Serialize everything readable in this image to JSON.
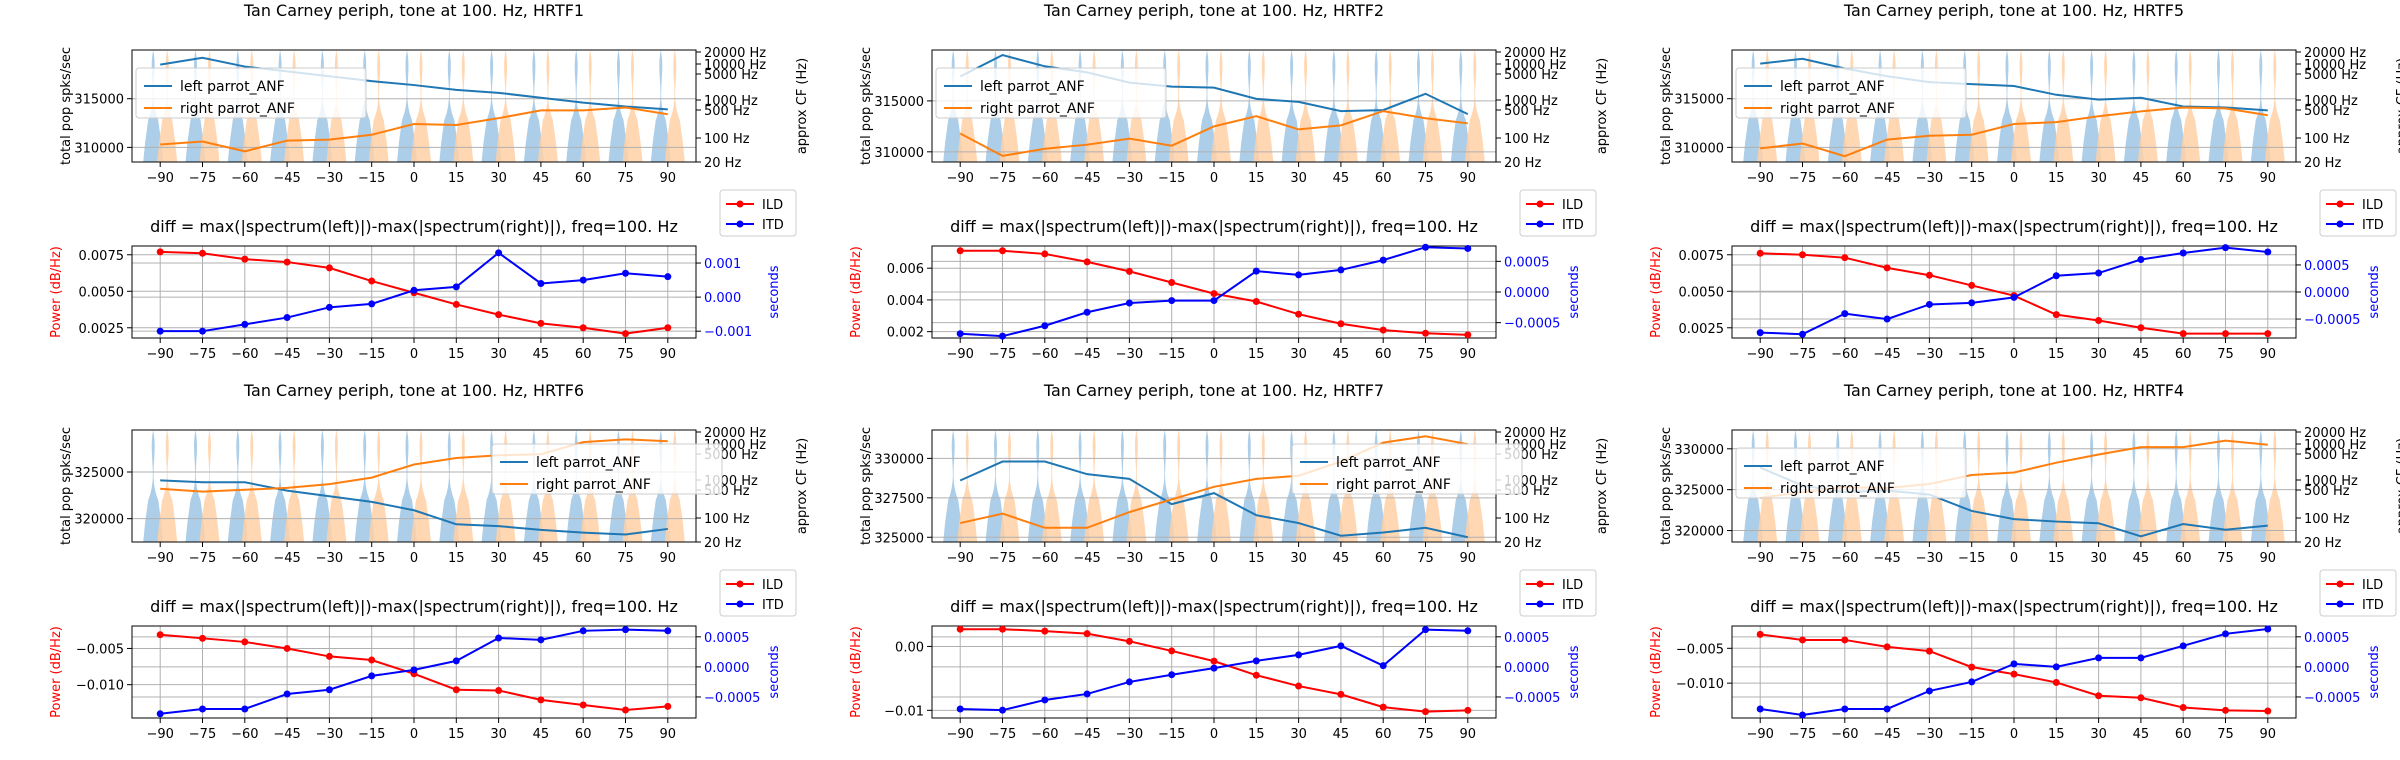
{
  "chart_data": [
    {
      "id": "hrtf1",
      "type": "line",
      "top": {
        "title": "Tan Carney periph, tone at 100. Hz, HRTF1",
        "ylabel": "total pop spks/sec",
        "y2label": "approx CF (Hz)",
        "x": [
          -90,
          -75,
          -60,
          -45,
          -30,
          -15,
          0,
          15,
          30,
          45,
          60,
          75,
          90
        ],
        "ylim": [
          308500,
          320000
        ],
        "yticks": [
          310000,
          315000
        ],
        "ytick_labels": [
          "310000",
          "315000"
        ],
        "y2ticks": [
          "20 Hz",
          "100 Hz",
          "500 Hz",
          "1000 Hz",
          "5000 Hz",
          "10000 Hz",
          "20000 Hz"
        ],
        "legend": "upper left",
        "series": [
          {
            "name": "left  parrot_ANF",
            "color": "#1f77b4",
            "values": [
              318500,
              319200,
              318300,
              317800,
              317300,
              316800,
              316400,
              315900,
              315600,
              315100,
              314600,
              314200,
              313900
            ]
          },
          {
            "name": "right parrot_ANF",
            "color": "#ff7f0e",
            "values": [
              310300,
              310600,
              309600,
              310700,
              310800,
              311300,
              312400,
              312300,
              313000,
              313800,
              313800,
              314100,
              313400
            ]
          }
        ]
      },
      "bottom": {
        "title": "diff = max(|spectrum(left)|)-max(|spectrum(right)|), freq=100. Hz",
        "ylabel": "Power (dB/Hz)",
        "y2label": "seconds",
        "ylim": [
          0.0018,
          0.0081
        ],
        "yticks": [
          0.0025,
          0.005,
          0.0075
        ],
        "ytick_labels": [
          "0.0025",
          "0.0050",
          "0.0075"
        ],
        "y2lim": [
          -0.0012,
          0.0015
        ],
        "y2ticks": [
          -0.001,
          0,
          0.001
        ],
        "y2tick_labels": [
          "−0.001",
          "0.000",
          "0.001"
        ],
        "ild": [
          0.0077,
          0.0076,
          0.0072,
          0.007,
          0.0066,
          0.0057,
          0.0049,
          0.0041,
          0.0034,
          0.0028,
          0.0025,
          0.0021,
          0.0025
        ],
        "itd": [
          -0.001,
          -0.001,
          -0.0008,
          -0.0006,
          -0.0003,
          -0.0002,
          0.0002,
          0.0003,
          0.0013,
          0.0004,
          0.0005,
          0.0007,
          0.0006
        ]
      }
    },
    {
      "id": "hrtf2",
      "type": "line",
      "top": {
        "title": "Tan Carney periph, tone at 100. Hz, HRTF2",
        "ylabel": "total pop spks/sec",
        "y2label": "approx CF (Hz)",
        "x": [
          -90,
          -75,
          -60,
          -45,
          -30,
          -15,
          0,
          15,
          30,
          45,
          60,
          75,
          90
        ],
        "ylim": [
          309000,
          320000
        ],
        "yticks": [
          310000,
          315000
        ],
        "ytick_labels": [
          "310000",
          "315000"
        ],
        "y2ticks": [
          "20 Hz",
          "100 Hz",
          "500 Hz",
          "1000 Hz",
          "5000 Hz",
          "10000 Hz",
          "20000 Hz"
        ],
        "legend": "upper left",
        "series": [
          {
            "name": "left  parrot_ANF",
            "color": "#1f77b4",
            "values": [
              317400,
              319500,
              318400,
              317800,
              316800,
              316400,
              316300,
              315200,
              314900,
              314000,
              314100,
              315700,
              313700
            ]
          },
          {
            "name": "right parrot_ANF",
            "color": "#ff7f0e",
            "values": [
              311800,
              309600,
              310300,
              310700,
              311300,
              310600,
              312500,
              313500,
              312200,
              312600,
              314000,
              313300,
              312800
            ]
          }
        ]
      },
      "bottom": {
        "title": "diff = max(|spectrum(left)|)-max(|spectrum(right)|), freq=100. Hz",
        "ylabel": "Power (dB/Hz)",
        "y2label": "seconds",
        "ylim": [
          0.0016,
          0.0074
        ],
        "yticks": [
          0.002,
          0.004,
          0.006
        ],
        "ytick_labels": [
          "0.002",
          "0.004",
          "0.006"
        ],
        "y2lim": [
          -0.00075,
          0.00075
        ],
        "y2ticks": [
          -0.0005,
          0,
          0.0005
        ],
        "y2tick_labels": [
          "−0.0005",
          "0.0000",
          "0.0005"
        ],
        "ild": [
          0.0071,
          0.0071,
          0.0069,
          0.0064,
          0.0058,
          0.0051,
          0.0044,
          0.0039,
          0.0031,
          0.0025,
          0.0021,
          0.0019,
          0.0018
        ],
        "itd": [
          -0.00068,
          -0.00072,
          -0.00055,
          -0.00033,
          -0.00018,
          -0.00014,
          -0.00014,
          0.00034,
          0.00028,
          0.00036,
          0.00052,
          0.00073,
          0.00071
        ]
      }
    },
    {
      "id": "hrtf5",
      "type": "line",
      "top": {
        "title": "Tan Carney periph, tone at 100. Hz, HRTF5",
        "ylabel": "total pop spks/sec",
        "y2label": "approx CF (Hz)",
        "x": [
          -90,
          -75,
          -60,
          -45,
          -30,
          -15,
          0,
          15,
          30,
          45,
          60,
          75,
          90
        ],
        "ylim": [
          308500,
          320000
        ],
        "yticks": [
          310000,
          315000
        ],
        "ytick_labels": [
          "310000",
          "315000"
        ],
        "y2ticks": [
          "20 Hz",
          "100 Hz",
          "500 Hz",
          "1000 Hz",
          "5000 Hz",
          "10000 Hz",
          "20000 Hz"
        ],
        "legend": "upper left",
        "series": [
          {
            "name": "left  parrot_ANF",
            "color": "#1f77b4",
            "values": [
              318600,
              319100,
              318100,
              317300,
              316700,
              316500,
              316300,
              315400,
              314900,
              315100,
              314200,
              314100,
              313800
            ]
          },
          {
            "name": "right parrot_ANF",
            "color": "#ff7f0e",
            "values": [
              309900,
              310400,
              309100,
              310800,
              311200,
              311300,
              312400,
              312600,
              313200,
              313700,
              314100,
              314000,
              313300
            ]
          }
        ]
      },
      "bottom": {
        "title": "diff = max(|spectrum(left)|)-max(|spectrum(right)|), freq=100. Hz",
        "ylabel": "Power (dB/Hz)",
        "y2label": "seconds",
        "ylim": [
          0.0018,
          0.0081
        ],
        "yticks": [
          0.0025,
          0.005,
          0.0075
        ],
        "ytick_labels": [
          "0.0025",
          "0.0050",
          "0.0075"
        ],
        "y2lim": [
          -0.00085,
          0.00085
        ],
        "y2ticks": [
          -0.0005,
          0,
          0.0005
        ],
        "y2tick_labels": [
          "−0.0005",
          "0.0000",
          "0.0005"
        ],
        "ild": [
          0.0076,
          0.0075,
          0.0073,
          0.0066,
          0.0061,
          0.0054,
          0.0047,
          0.0034,
          0.003,
          0.0025,
          0.0021,
          0.0021,
          0.0021
        ],
        "itd": [
          -0.00075,
          -0.00078,
          -0.0004,
          -0.0005,
          -0.00023,
          -0.0002,
          -0.0001,
          0.0003,
          0.00035,
          0.0006,
          0.00072,
          0.00082,
          0.00074
        ]
      }
    },
    {
      "id": "hrtf6",
      "type": "line",
      "top": {
        "title": "Tan Carney periph, tone at 100. Hz, HRTF6",
        "ylabel": "total pop spks/sec",
        "y2label": "approx CF (Hz)",
        "x": [
          -90,
          -75,
          -60,
          -45,
          -30,
          -15,
          0,
          15,
          30,
          45,
          60,
          75,
          90
        ],
        "ylim": [
          317500,
          329500
        ],
        "yticks": [
          320000,
          325000
        ],
        "ytick_labels": [
          "320000",
          "325000"
        ],
        "y2ticks": [
          "20 Hz",
          "100 Hz",
          "500 Hz",
          "1000 Hz",
          "5000 Hz",
          "10000 Hz",
          "20000 Hz"
        ],
        "legend": "center right",
        "series": [
          {
            "name": "left  parrot_ANF",
            "color": "#1f77b4",
            "values": [
              324100,
              323900,
              323900,
              323000,
              322400,
              321800,
              320900,
              319400,
              319200,
              318800,
              318500,
              318300,
              318900
            ]
          },
          {
            "name": "right parrot_ANF",
            "color": "#ff7f0e",
            "values": [
              323200,
              322900,
              323100,
              323300,
              323700,
              324400,
              325800,
              326500,
              326800,
              326900,
              328200,
              328500,
              328300
            ]
          }
        ]
      },
      "bottom": {
        "title": "diff = max(|spectrum(left)|)-max(|spectrum(right)|), freq=100. Hz",
        "ylabel": "Power (dB/Hz)",
        "y2label": "seconds",
        "ylim": [
          -0.0146,
          -0.0019
        ],
        "yticks": [
          -0.01,
          -0.005
        ],
        "ytick_labels": [
          "−0.010",
          "−0.005"
        ],
        "y2lim": [
          -0.00085,
          0.00068
        ],
        "y2ticks": [
          -0.0005,
          0,
          0.0005
        ],
        "y2tick_labels": [
          "−0.0005",
          "0.0000",
          "0.0005"
        ],
        "ild": [
          -0.0031,
          -0.0036,
          -0.0041,
          -0.005,
          -0.0061,
          -0.0066,
          -0.0085,
          -0.0107,
          -0.0108,
          -0.0121,
          -0.0128,
          -0.0135,
          -0.013
        ],
        "itd": [
          -0.00078,
          -0.0007,
          -0.0007,
          -0.00045,
          -0.00038,
          -0.00015,
          -5e-05,
          0.0001,
          0.00048,
          0.00045,
          0.0006,
          0.00062,
          0.0006
        ]
      }
    },
    {
      "id": "hrtf7",
      "type": "line",
      "top": {
        "title": "Tan Carney periph, tone at 100. Hz, HRTF7",
        "ylabel": "total pop spks/sec",
        "y2label": "approx CF (Hz)",
        "x": [
          -90,
          -75,
          -60,
          -45,
          -30,
          -15,
          0,
          15,
          30,
          45,
          60,
          75,
          90
        ],
        "ylim": [
          324700,
          331800
        ],
        "yticks": [
          325000,
          327500,
          330000
        ],
        "ytick_labels": [
          "325000",
          "327500",
          "330000"
        ],
        "y2ticks": [
          "20 Hz",
          "100 Hz",
          "500 Hz",
          "1000 Hz",
          "5000 Hz",
          "10000 Hz",
          "20000 Hz"
        ],
        "legend": "center right",
        "series": [
          {
            "name": "left  parrot_ANF",
            "color": "#1f77b4",
            "values": [
              328600,
              329800,
              329800,
              329000,
              328700,
              327100,
              327800,
              326400,
              325900,
              325100,
              325300,
              325600,
              325000
            ]
          },
          {
            "name": "right parrot_ANF",
            "color": "#ff7f0e",
            "values": [
              325900,
              326500,
              325600,
              325600,
              326600,
              327400,
              328200,
              328700,
              328900,
              329800,
              331000,
              331400,
              330900
            ]
          }
        ]
      },
      "bottom": {
        "title": "diff = max(|spectrum(left)|)-max(|spectrum(right)|), freq=100. Hz",
        "ylabel": "Power (dB/Hz)",
        "y2label": "seconds",
        "ylim": [
          -0.0112,
          0.0032
        ],
        "yticks": [
          -0.01,
          0
        ],
        "ytick_labels": [
          "−0.01",
          "0.00"
        ],
        "y2lim": [
          -0.00085,
          0.00068
        ],
        "y2ticks": [
          -0.0005,
          0,
          0.0005
        ],
        "y2tick_labels": [
          "−0.0005",
          "0.0000",
          "0.0005"
        ],
        "ild": [
          0.0027,
          0.0027,
          0.0024,
          0.002,
          0.0008,
          -0.0007,
          -0.0023,
          -0.0045,
          -0.0062,
          -0.0075,
          -0.0095,
          -0.0102,
          -0.01
        ],
        "itd": [
          -0.0007,
          -0.00072,
          -0.00055,
          -0.00045,
          -0.00025,
          -0.00013,
          -2e-05,
          0.0001,
          0.0002,
          0.00035,
          2e-05,
          0.00062,
          0.0006
        ]
      }
    },
    {
      "id": "hrtf4",
      "type": "line",
      "top": {
        "title": "Tan Carney periph, tone at 100. Hz, HRTF4",
        "ylabel": "total pop spks/sec",
        "y2label": "approx CF (Hz)",
        "x": [
          -90,
          -75,
          -60,
          -45,
          -30,
          -15,
          0,
          15,
          30,
          45,
          60,
          75,
          90
        ],
        "ylim": [
          318600,
          332300
        ],
        "yticks": [
          320000,
          325000,
          330000
        ],
        "ytick_labels": [
          "320000",
          "325000",
          "330000"
        ],
        "y2ticks": [
          "20 Hz",
          "100 Hz",
          "500 Hz",
          "1000 Hz",
          "5000 Hz",
          "10000 Hz",
          "20000 Hz"
        ],
        "legend": "upper left",
        "series": [
          {
            "name": "left  parrot_ANF",
            "color": "#1f77b4",
            "values": [
              327700,
              325500,
              324700,
              324900,
              324400,
              322400,
              321400,
              321100,
              320900,
              319300,
              320800,
              320100,
              320600
            ]
          },
          {
            "name": "right parrot_ANF",
            "color": "#ff7f0e",
            "values": [
              324000,
              324700,
              325300,
              325200,
              325700,
              326800,
              327100,
              328300,
              329300,
              330200,
              330200,
              331000,
              330500
            ]
          }
        ]
      },
      "bottom": {
        "title": "diff = max(|spectrum(left)|)-max(|spectrum(right)|), freq=100. Hz",
        "ylabel": "Power (dB/Hz)",
        "y2label": "seconds",
        "ylim": [
          -0.015,
          -0.0018
        ],
        "yticks": [
          -0.01,
          -0.005
        ],
        "ytick_labels": [
          "−0.010",
          "−0.005"
        ],
        "y2lim": [
          -0.00085,
          0.00068
        ],
        "y2ticks": [
          -0.0005,
          0,
          0.0005
        ],
        "y2tick_labels": [
          "−0.0005",
          "0.0000",
          "0.0005"
        ],
        "ild": [
          -0.003,
          -0.0038,
          -0.0038,
          -0.0048,
          -0.0054,
          -0.0077,
          -0.0087,
          -0.0099,
          -0.0118,
          -0.0121,
          -0.0135,
          -0.0139,
          -0.014
        ],
        "itd": [
          -0.0007,
          -0.0008,
          -0.0007,
          -0.0007,
          -0.0004,
          -0.00025,
          5e-05,
          0.0,
          0.00015,
          0.00015,
          0.00035,
          0.00055,
          0.00063
        ]
      }
    }
  ],
  "legend_labels": {
    "ild": "ILD",
    "itd": "ITD"
  },
  "colors": {
    "left": "#1f77b4",
    "right": "#ff7f0e",
    "ild": "#ff0000",
    "itd": "#0000ff",
    "violin_left": "#9ec6e4",
    "violin_right": "#ffd0a6",
    "grid": "#b0b0b0"
  }
}
